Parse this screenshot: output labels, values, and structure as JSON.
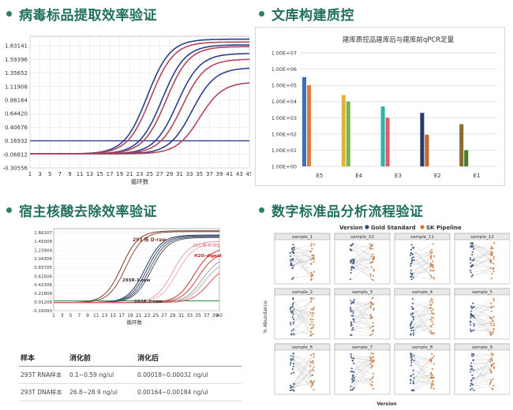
{
  "sections": {
    "s1": "病毒标品提取效率验证",
    "s2": "文库构建质控",
    "s3": "宿主核酸去除效率验证",
    "s4": "数字标准品分析流程验证"
  },
  "chart_data": [
    {
      "type": "line",
      "name": "virus-amplification",
      "xlabel": "循环数",
      "ylabel": "",
      "xlim": [
        1,
        45
      ],
      "ylim": [
        -0.30556,
        2.0
      ],
      "x_ticks": [
        "1",
        "3",
        "5",
        "7",
        "9",
        "11",
        "13",
        "15",
        "17",
        "19",
        "21",
        "23",
        "25",
        "27",
        "29",
        "31",
        "33",
        "35",
        "37",
        "39",
        "41",
        "43",
        "45"
      ],
      "y_ticks": [
        "1.83141",
        "1.59396",
        "1.35652",
        "1.11908",
        "0.88164",
        "0.64420",
        "0.40676",
        "0.16932",
        "-0.06812",
        "-0.30556"
      ],
      "threshold": 0.16932,
      "series": [
        {
          "color": "#2c3e8c",
          "midpoint": 24.5,
          "max": 1.95
        },
        {
          "color": "#b0485a",
          "midpoint": 25.2,
          "max": 1.9
        },
        {
          "color": "#2c3e8c",
          "midpoint": 27.5,
          "max": 1.85
        },
        {
          "color": "#b0485a",
          "midpoint": 28.3,
          "max": 1.82
        },
        {
          "color": "#2c3e8c",
          "midpoint": 30.5,
          "max": 1.7
        },
        {
          "color": "#b0485a",
          "midpoint": 31.5,
          "max": 1.6
        },
        {
          "color": "#2c3e8c",
          "midpoint": 33.5,
          "max": 1.45
        },
        {
          "color": "#b0485a",
          "midpoint": 35.0,
          "max": 1.2
        }
      ]
    },
    {
      "type": "bar",
      "name": "library-qpcr",
      "title": "建库质控品建库后与建库前qPCR定量",
      "log_scale": true,
      "y_ticks": [
        "1.00E+07",
        "1.00E+06",
        "1.00E+05",
        "1.00E+04",
        "1.00E+03",
        "1.00E+02",
        "1.00E+01",
        "1.00E+00"
      ],
      "categories": [
        "E5",
        "E4",
        "E3",
        "E2",
        "E1"
      ],
      "series": [
        {
          "values": [
            5.5,
            4.4,
            3.7,
            3.3,
            2.6
          ],
          "colors": [
            "#3c6fb6",
            "#e0b23a",
            "#2fb5a8",
            "#253a6b",
            "#8a6a2a"
          ]
        },
        {
          "values": [
            5.0,
            4.0,
            3.0,
            1.95,
            1.0
          ],
          "colors": [
            "#e07b39",
            "#7ab648",
            "#e05a6a",
            "#c8642c",
            "#4a7a2a"
          ]
        }
      ]
    },
    {
      "type": "line",
      "name": "host-depletion",
      "xlabel": "循环数",
      "x_ticks": [
        "1",
        "3",
        "5",
        "7",
        "9",
        "11",
        "13",
        "15",
        "17",
        "19",
        "21",
        "23",
        "25",
        "27",
        "29",
        "31",
        "33",
        "35",
        "37",
        "39",
        "40"
      ],
      "y_ticks": [
        "1.66107",
        "1.45008",
        "1.23909",
        "1.04304",
        "0.83705",
        "0.62506",
        "0.42306",
        "0.21809",
        "0.01208",
        "-0.19093"
      ],
      "annotations": [
        "293 株 D-raw",
        "293 株 D-dig",
        "H2O-digest",
        "293R-1-raw",
        "293R-1-raw"
      ]
    },
    {
      "type": "table",
      "name": "host-depletion-table",
      "headers": [
        "样本",
        "消化前",
        "消化后"
      ],
      "rows": [
        [
          "293T RNA样本",
          "0.1~0.59 ng/ul",
          "0.00018~0.00032 ng/ul"
        ],
        [
          "293T DNA样本",
          "26.8~28.9 ng/ul",
          "0.00164~0.00184 ng/ul"
        ]
      ]
    },
    {
      "type": "scatter",
      "name": "digital-standard",
      "legend_title": "Version",
      "legend": [
        {
          "label": "Gold Standard",
          "color": "#2e4a7a"
        },
        {
          "label": "SK Pipeline",
          "color": "#c8783a"
        }
      ],
      "ylabel": "% Abundance",
      "xlabel": "Version",
      "panels": [
        "sample_1",
        "sample_10",
        "sample_11",
        "sample_12",
        "sample_2",
        "sample_3",
        "sample_4",
        "sample_5",
        "sample_6",
        "sample_7",
        "sample_8",
        "sample_9"
      ]
    }
  ]
}
